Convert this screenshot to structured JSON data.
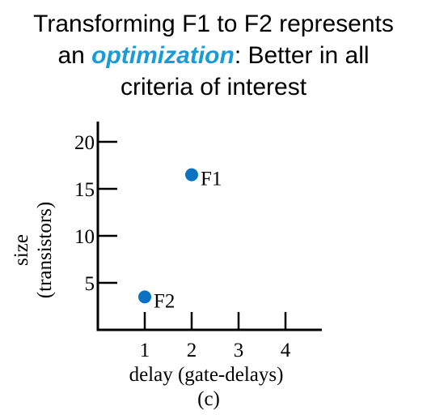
{
  "title": {
    "line1": "Transforming F1 to F2 represents",
    "line2_pre": "an ",
    "line2_emph": "optimization",
    "line2_post": ": Better in all",
    "line3": "criteria of interest"
  },
  "colors": {
    "emphasis": "#1a9bd7",
    "point": "#0a72c0",
    "axis": "#000000"
  },
  "chart_data": {
    "type": "scatter",
    "xlabel": "delay (gate-delays)",
    "ylabel_line1": "size",
    "ylabel_line2": "(transistors)",
    "caption": "(c)",
    "xlim": [
      0,
      4.7
    ],
    "ylim": [
      0,
      22
    ],
    "xticks": [
      1,
      2,
      3,
      4
    ],
    "yticks": [
      5,
      10,
      15,
      20
    ],
    "grid": false,
    "points": [
      {
        "label": "F1",
        "x": 2,
        "y": 16.5
      },
      {
        "label": "F2",
        "x": 1,
        "y": 3.5
      }
    ]
  }
}
